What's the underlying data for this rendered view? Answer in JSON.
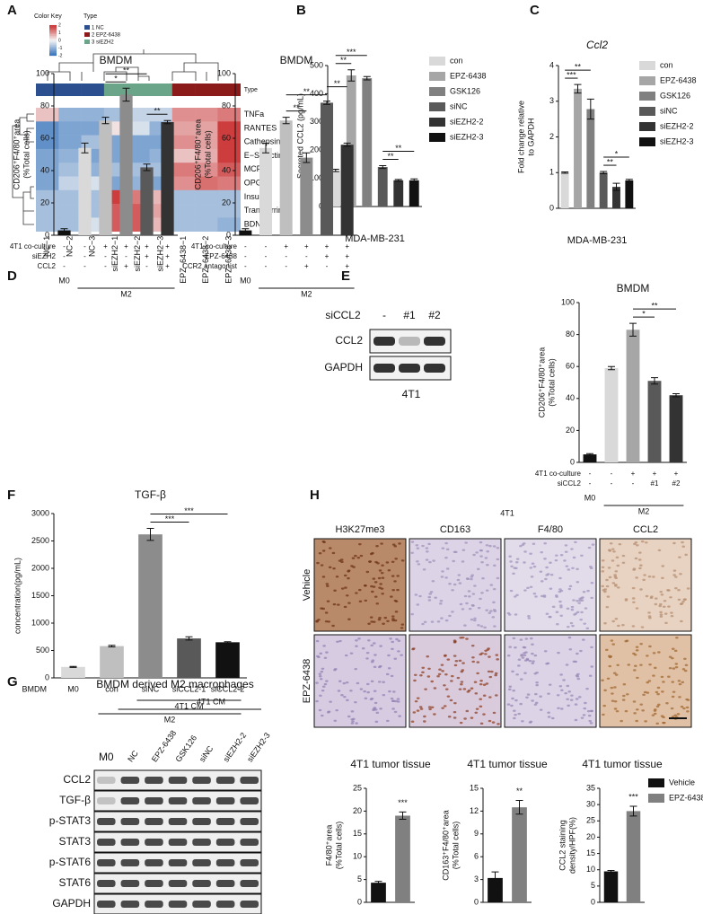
{
  "panel_labels": [
    "A",
    "B",
    "C",
    "D",
    "E",
    "F",
    "G",
    "H"
  ],
  "heatmap": {
    "color_key_title": "Color Key",
    "key_ticks": [
      2,
      1,
      0,
      -1,
      -2
    ],
    "clim": [
      -2,
      2
    ],
    "type_title": "Type",
    "type_row_label": "Type",
    "type_legend": [
      {
        "label": "1 NC",
        "color": "#2c4f8f"
      },
      {
        "label": "2 EPZ-6438",
        "color": "#8b1a1a"
      },
      {
        "label": "3 siEZH2",
        "color": "#6aa58a"
      }
    ],
    "rows": [
      "TNFa",
      "RANTES",
      "Cathepsin S",
      "E−Selectin",
      "MCP−1",
      "OPG",
      "Insulin",
      "Transferrin",
      "BDNF"
    ],
    "columns": [
      "NC−1",
      "NC−2",
      "NC−3",
      "siEZH2−1",
      "siEZH2−2",
      "siEZH2−3",
      "EPZ−6438−1",
      "EPZ−6438−2",
      "EPZ−6438−3"
    ],
    "column_types": [
      0,
      0,
      0,
      2,
      2,
      2,
      1,
      1,
      1
    ],
    "values": [
      [
        0.5,
        -1,
        -1,
        -0.8,
        -0.5,
        -0.5,
        1,
        1,
        1.2
      ],
      [
        -1.5,
        -1.2,
        -1.2,
        0.2,
        -0.3,
        -1,
        0.8,
        0.8,
        1.8
      ],
      [
        -1.5,
        -1.2,
        -0.8,
        -1.2,
        -1.2,
        -1.2,
        1,
        0.8,
        1.8
      ],
      [
        -1.2,
        -1,
        -1.2,
        -1.2,
        -1.2,
        -1,
        0.5,
        0.7,
        1.8
      ],
      [
        -1.2,
        -0.8,
        -1,
        -0.8,
        -0.8,
        -0.8,
        1.2,
        1,
        1.5
      ],
      [
        -1.2,
        -0.5,
        -0.3,
        -1.2,
        -1,
        -1.2,
        1,
        1.3,
        1.2
      ],
      [
        -0.8,
        -0.8,
        -0.8,
        1.8,
        1.2,
        0.6,
        -0.8,
        -0.8,
        -0.8
      ],
      [
        -0.8,
        -0.8,
        -0.8,
        1.5,
        1.5,
        0.8,
        -0.8,
        -0.8,
        -0.8
      ],
      [
        -0.8,
        -0.8,
        -0.3,
        1.5,
        1.5,
        0.6,
        -0.8,
        -0.8,
        -1
      ]
    ]
  },
  "chart_data": [
    {
      "type": "bar",
      "ylabel": [
        "Secreted CCL2 (pg/mL)"
      ],
      "xlabel": "MDA-MB-231",
      "legend": true,
      "categories": [
        "con",
        "EPZ-6438",
        "GSK126",
        "siNC",
        "siEZH2-2",
        "siEZH2-3"
      ],
      "values": [
        128,
        465,
        455,
        140,
        93,
        93
      ],
      "errors": [
        4,
        20,
        6,
        5,
        3,
        5
      ],
      "colors": [
        "#d9d9d9",
        "#a6a6a6",
        "#808080",
        "#595959",
        "#333333",
        "#111111"
      ],
      "ylim": [
        0,
        500
      ],
      "yticks": [
        0,
        100,
        200,
        300,
        400,
        500
      ],
      "significance": [
        {
          "from": 0,
          "to": 1,
          "label": "**"
        },
        {
          "from": 0,
          "to": 2,
          "label": "***"
        },
        {
          "from": 3,
          "to": 4,
          "label": "**"
        },
        {
          "from": 3,
          "to": 5,
          "label": "**"
        }
      ]
    },
    {
      "type": "bar",
      "title": "Ccl2",
      "title_style": "italic",
      "ylabel": [
        "Fold change relative",
        "to GAPDH"
      ],
      "xlabel": "MDA-MB-231",
      "legend": true,
      "categories": [
        "con",
        "EPZ-6438",
        "GSK126",
        "siNC",
        "siEZH2-2",
        "siEZH2-3"
      ],
      "values": [
        1,
        3.35,
        2.78,
        1,
        0.6,
        0.78
      ],
      "errors": [
        0.02,
        0.12,
        0.28,
        0.03,
        0.1,
        0.03
      ],
      "colors": [
        "#d9d9d9",
        "#a6a6a6",
        "#808080",
        "#595959",
        "#333333",
        "#111111"
      ],
      "ylim": [
        0,
        4
      ],
      "yticks": [
        0,
        1,
        2,
        3,
        4
      ],
      "significance": [
        {
          "from": 0,
          "to": 1,
          "label": "***"
        },
        {
          "from": 0,
          "to": 2,
          "label": "**"
        },
        {
          "from": 3,
          "to": 4,
          "label": "**"
        },
        {
          "from": 3,
          "to": 5,
          "label": "*"
        }
      ]
    },
    {
      "type": "bar",
      "title": "BMDM",
      "ylabel": [
        "CD206⁺F4/80⁺area",
        "(%Total cells)"
      ],
      "values": [
        3,
        54,
        71,
        87,
        42,
        70
      ],
      "errors": [
        1,
        3,
        2,
        4,
        2,
        1
      ],
      "colors": [
        "#111111",
        "#d9d9d9",
        "#bfbfbf",
        "#8c8c8c",
        "#595959",
        "#333333"
      ],
      "ylim": [
        0,
        100
      ],
      "yticks": [
        0,
        20,
        40,
        60,
        80,
        100
      ],
      "significance": [
        {
          "from": 2,
          "to": 3,
          "label": "*"
        },
        {
          "from": 2,
          "to": 4,
          "label": "**"
        },
        {
          "from": 4,
          "to": 5,
          "label": "**"
        }
      ],
      "conditions": [
        {
          "label": "4T1 co-culture",
          "marks": [
            "-",
            "-",
            "+",
            "+",
            "+",
            "+"
          ]
        },
        {
          "label": "siEZH2",
          "marks": [
            "-",
            "-",
            "-",
            "-",
            "+",
            "+"
          ]
        },
        {
          "label": "CCL2",
          "marks": [
            "-",
            "-",
            "-",
            "+",
            "-",
            "+"
          ]
        }
      ],
      "groups": [
        {
          "label": "M0",
          "from": 0,
          "to": 0
        },
        {
          "label": "M2",
          "from": 1,
          "to": 5
        }
      ]
    },
    {
      "type": "bar",
      "title": "BMDM",
      "ylabel": [
        "CD206⁺F4/80⁺area",
        "(%Total cells)"
      ],
      "values": [
        3,
        54,
        71,
        48,
        82,
        56
      ],
      "errors": [
        1,
        3,
        2,
        3,
        1,
        1
      ],
      "colors": [
        "#111111",
        "#d9d9d9",
        "#bfbfbf",
        "#8c8c8c",
        "#595959",
        "#333333"
      ],
      "ylim": [
        0,
        100
      ],
      "yticks": [
        0,
        20,
        40,
        60,
        80,
        100
      ],
      "significance": [
        {
          "from": 2,
          "to": 3,
          "label": "**"
        },
        {
          "from": 2,
          "to": 4,
          "label": "**"
        },
        {
          "from": 4,
          "to": 5,
          "label": "**"
        }
      ],
      "conditions": [
        {
          "label": "4T1 co-culture",
          "marks": [
            "-",
            "-",
            "+",
            "+",
            "+",
            "+"
          ]
        },
        {
          "label": "EPZ-6438",
          "marks": [
            "-",
            "-",
            "-",
            "-",
            "+",
            "+"
          ]
        },
        {
          "label": "CCR2 antagonist",
          "marks": [
            "-",
            "-",
            "-",
            "+",
            "-",
            "+"
          ]
        }
      ],
      "groups": [
        {
          "label": "M0",
          "from": 0,
          "to": 0
        },
        {
          "label": "M2",
          "from": 1,
          "to": 5
        }
      ]
    },
    {
      "type": "bar",
      "title": "BMDM",
      "ylabel": [
        "CD206⁺F4/80⁺area",
        "(%Total cells)"
      ],
      "values": [
        5,
        59,
        83,
        51,
        42
      ],
      "errors": [
        0.5,
        1,
        4,
        2,
        1
      ],
      "colors": [
        "#111111",
        "#d9d9d9",
        "#a6a6a6",
        "#595959",
        "#333333"
      ],
      "ylim": [
        0,
        100
      ],
      "yticks": [
        0,
        20,
        40,
        60,
        80,
        100
      ],
      "significance": [
        {
          "from": 2,
          "to": 3,
          "label": "*"
        },
        {
          "from": 2,
          "to": 4,
          "label": "**"
        }
      ],
      "conditions": [
        {
          "label": "4T1 co-culture",
          "marks": [
            "-",
            "-",
            "+",
            "+",
            "+"
          ]
        },
        {
          "label": "siCCL2",
          "marks": [
            "-",
            "-",
            "-",
            "#1",
            "#2"
          ]
        }
      ],
      "groups": [
        {
          "label": "M0",
          "from": 0,
          "to": 0
        },
        {
          "label": "M2",
          "from": 1,
          "to": 4
        }
      ]
    },
    {
      "type": "bar",
      "title": "TGF-β",
      "ylabel": [
        "concentration(pg/mL)"
      ],
      "row_label": "BMDM",
      "categories": [
        "M0",
        "con",
        "siNC",
        "siCCL2-1",
        "siCCL2-2"
      ],
      "values": [
        200,
        580,
        2620,
        720,
        650
      ],
      "errors": [
        10,
        15,
        110,
        30,
        10
      ],
      "colors": [
        "#d9d9d9",
        "#bfbfbf",
        "#8c8c8c",
        "#595959",
        "#111111"
      ],
      "ylim": [
        0,
        3000
      ],
      "yticks": [
        0,
        500,
        1000,
        1500,
        2000,
        2500,
        3000
      ],
      "significance": [
        {
          "from": 2,
          "to": 3,
          "label": "***"
        },
        {
          "from": 2,
          "to": 4,
          "label": "***"
        }
      ],
      "groups": [
        {
          "label": "4T1 CM",
          "from": 2,
          "to": 4
        },
        {
          "label": "M2",
          "from": 1,
          "to": 4
        }
      ]
    },
    {
      "type": "bar",
      "title": "4T1 tumor tissue",
      "ylabel": [
        "F4/80⁺area",
        "(%Total cells)"
      ],
      "values": [
        4.3,
        19
      ],
      "errors": [
        0.3,
        0.8
      ],
      "colors": [
        "#111111",
        "#808080"
      ],
      "ylim": [
        0,
        25
      ],
      "yticks": [
        0,
        5,
        10,
        15,
        20,
        25
      ],
      "significance": [
        {
          "from": 1,
          "to": 1,
          "label": "***"
        }
      ]
    },
    {
      "type": "bar",
      "title": "4T1 tumor tissue",
      "ylabel": [
        "CD163⁺F4/80⁺area",
        "(%Total cells)"
      ],
      "values": [
        3.2,
        12.5
      ],
      "errors": [
        0.8,
        0.9
      ],
      "colors": [
        "#111111",
        "#808080"
      ],
      "ylim": [
        0,
        15
      ],
      "yticks": [
        0,
        3,
        6,
        9,
        12,
        15
      ],
      "significance": [
        {
          "from": 1,
          "to": 1,
          "label": "**"
        }
      ]
    },
    {
      "type": "bar",
      "title": "4T1 tumor tissue",
      "ylabel": [
        "CCL2 staining",
        "density/HPF(%)"
      ],
      "legend": true,
      "categories": [
        "Vehicle",
        "EPZ-6438"
      ],
      "values": [
        9.5,
        28
      ],
      "errors": [
        0.3,
        1.5
      ],
      "colors": [
        "#111111",
        "#808080"
      ],
      "ylim": [
        0,
        35
      ],
      "yticks": [
        0,
        5,
        10,
        15,
        20,
        25,
        30,
        35
      ],
      "significance": [
        {
          "from": 1,
          "to": 1,
          "label": "***"
        }
      ]
    }
  ],
  "blot_e": {
    "header": "siCCL2",
    "lanes": [
      "-",
      "#1",
      "#2"
    ],
    "rows": [
      "CCL2",
      "GAPDH"
    ],
    "cell_line": "4T1"
  },
  "blot_g": {
    "title": "BMDM derived M2 macrophages",
    "treatment": "4T1 CM",
    "lanes": [
      "M0",
      "NC",
      "EPZ-6438",
      "GSK126",
      "siNC",
      "siEZH2-2",
      "siEZH2-3"
    ],
    "rows": [
      "CCL2",
      "TGF-β",
      "p-STAT3",
      "STAT3",
      "p-STAT6",
      "STAT6",
      "GAPDH"
    ]
  },
  "ihc": {
    "cell_line": "4T1",
    "columns": [
      "H3K27me3",
      "CD163",
      "F4/80",
      "CCL2"
    ],
    "rows": [
      "Vehicle",
      "EPZ-6438"
    ]
  }
}
